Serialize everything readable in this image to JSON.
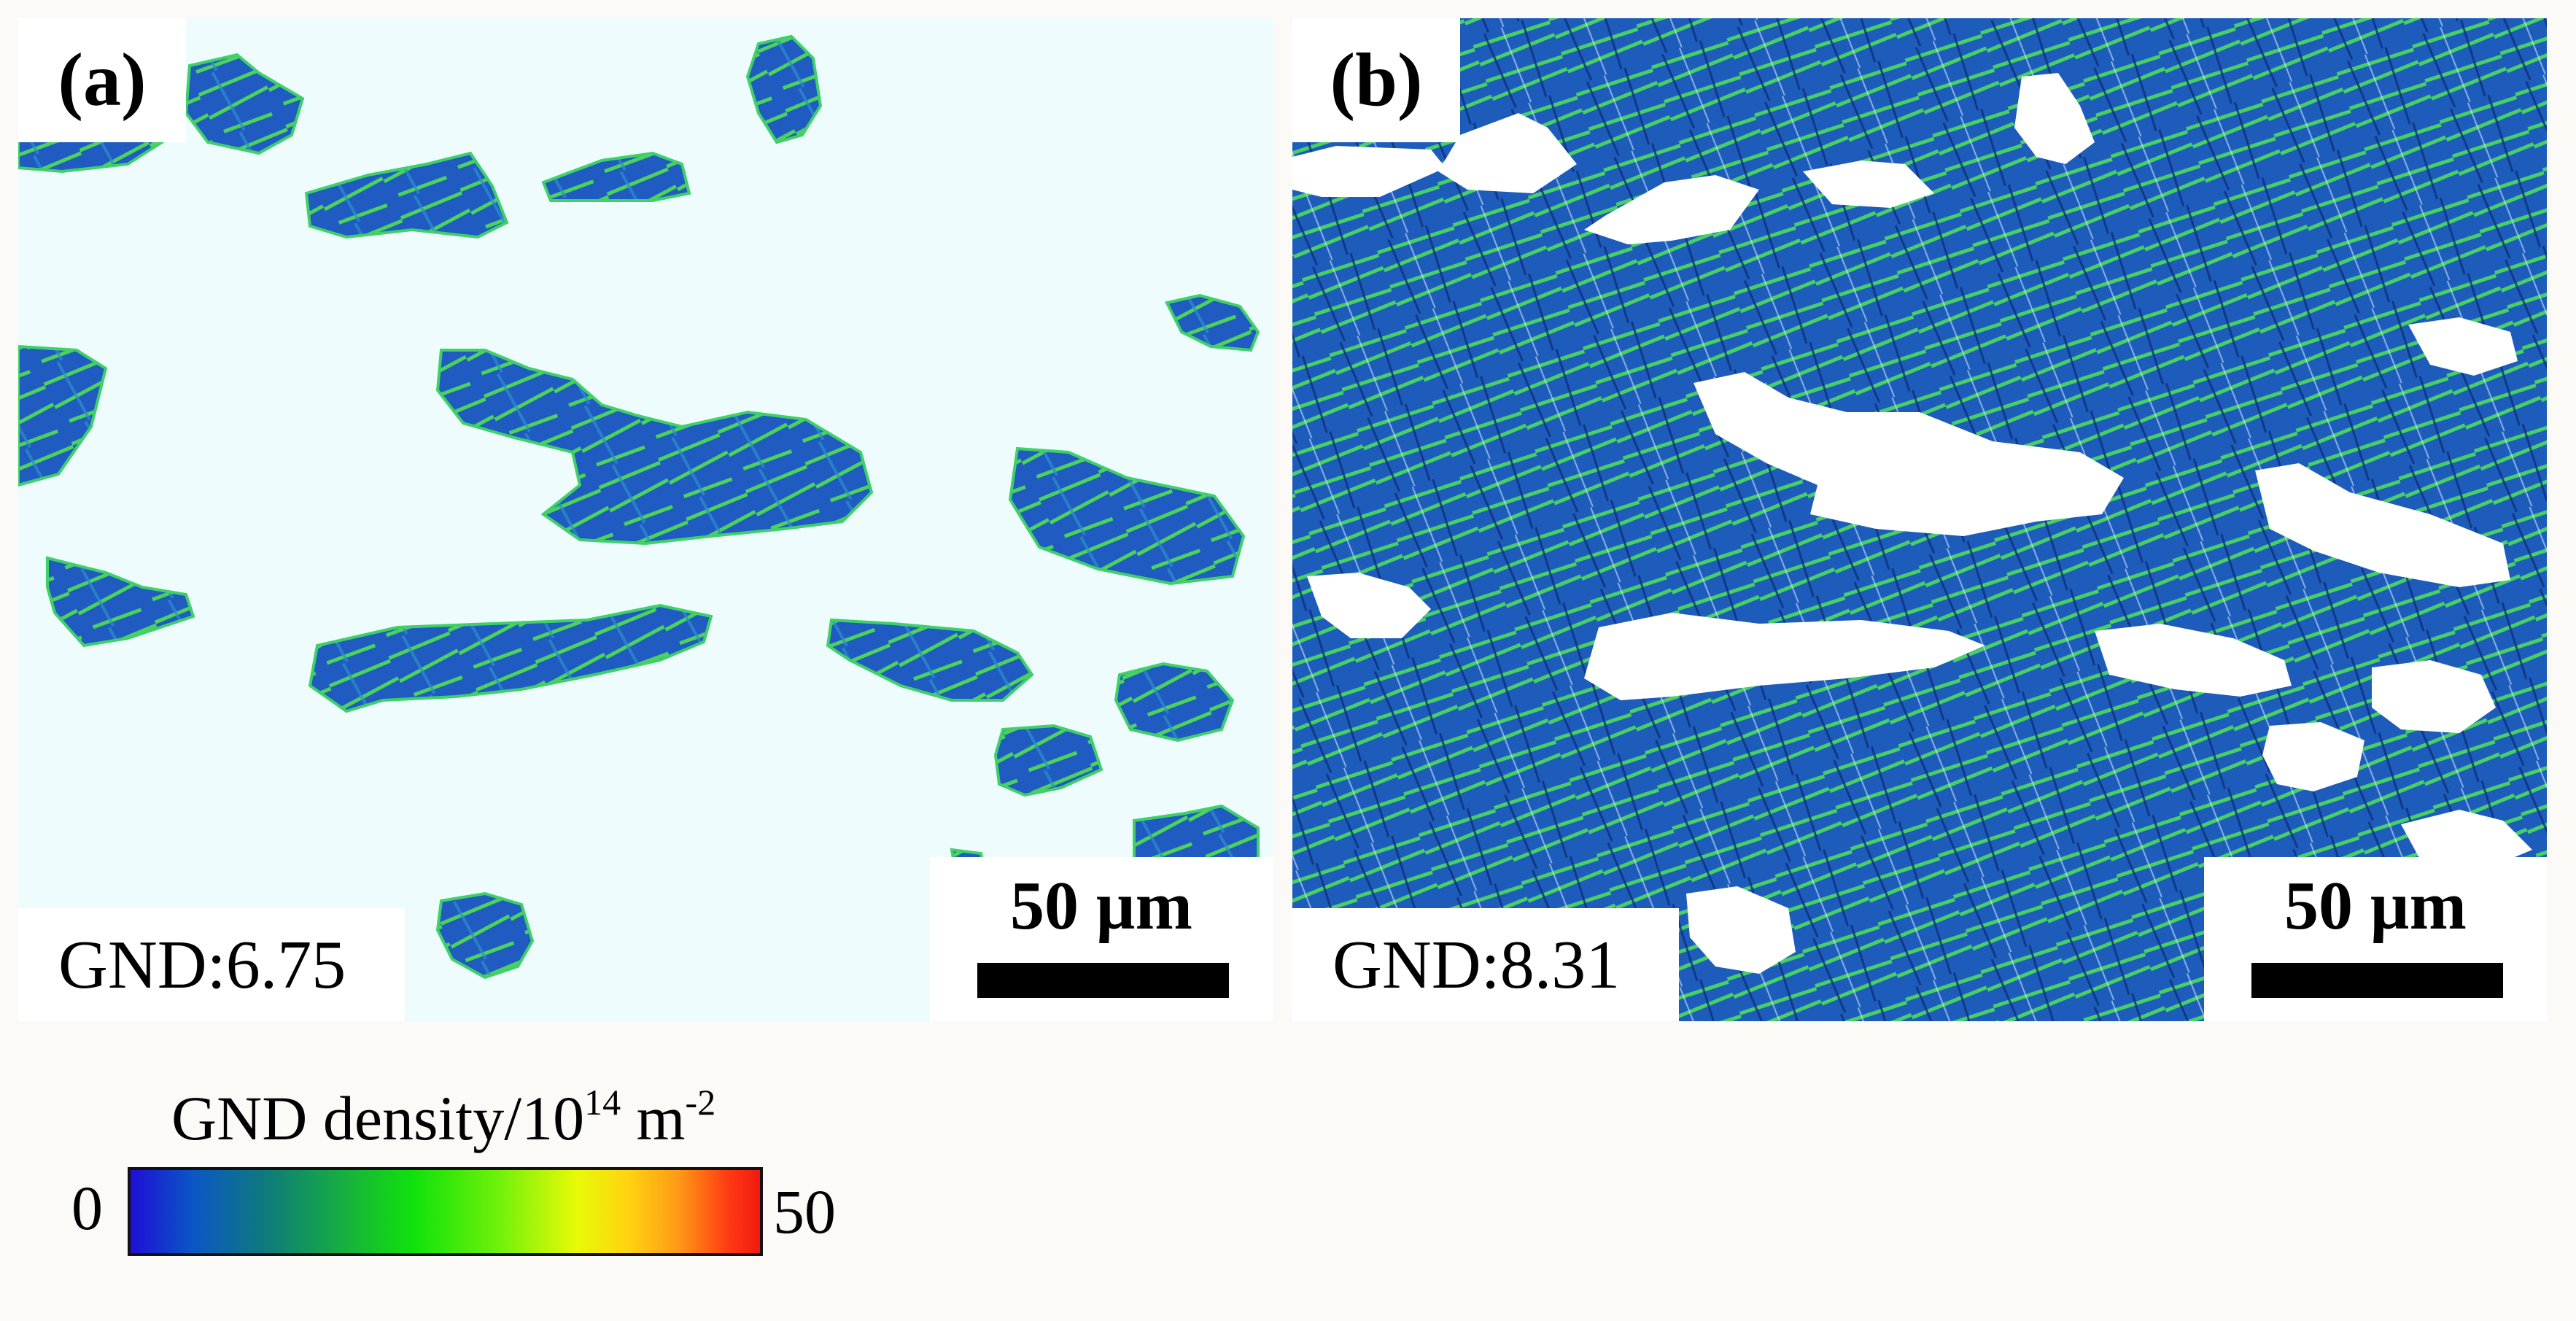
{
  "panels": [
    {
      "label": "(a)",
      "gnd_text": "GND:6.75",
      "scale_text": "50 µm"
    },
    {
      "label": "(b)",
      "gnd_text": "GND:8.31",
      "scale_text": "50 µm"
    }
  ],
  "legend": {
    "title": "GND density/10",
    "title_exp": "14",
    "title_unit": " m",
    "title_unit_exp": "-2",
    "min": "0",
    "max": "50"
  },
  "colors": {
    "panel_a_background": "#eefcfd",
    "grain_blue": "#1f5bc0",
    "grain_green": "#52e84a",
    "colormap": [
      "#1e0fd6",
      "#0f7c78",
      "#10e20b",
      "#e9fa08",
      "#ff9a16",
      "#f21a12"
    ]
  }
}
